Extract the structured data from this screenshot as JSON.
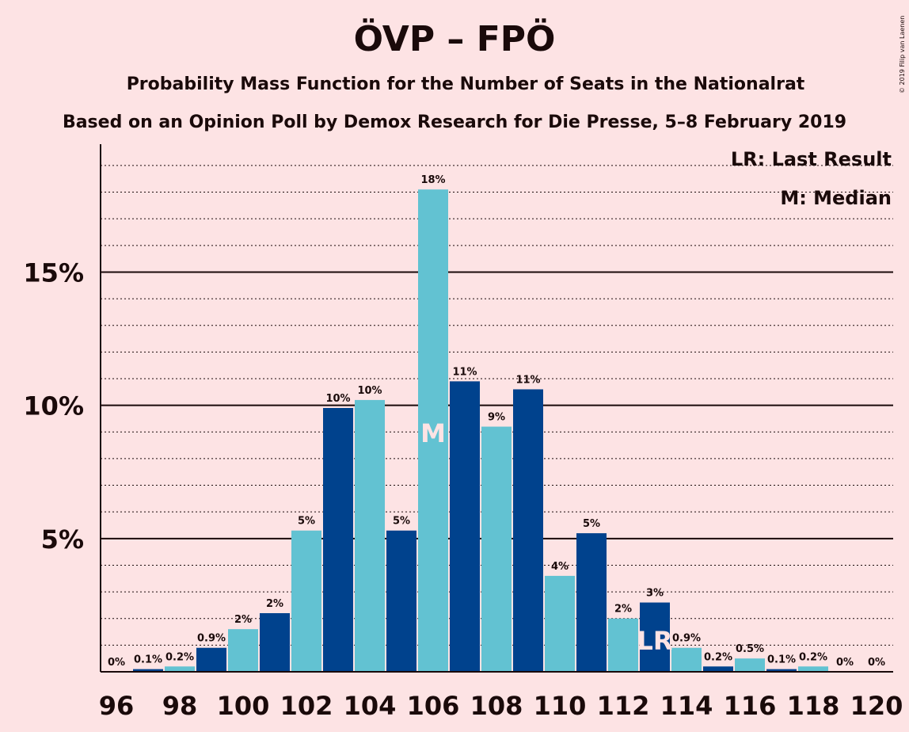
{
  "chart_data": {
    "type": "bar",
    "title": "ÖVP – FPÖ",
    "subtitle": "Probability Mass Function for the Number of Seats in the Nationalrat",
    "subtitle2": "Based on an Opinion Poll by Demox Research for Die Presse, 5–8 February 2019",
    "copyright": "© 2019 Filip van Laenen",
    "legend": {
      "lr": "LR: Last Result",
      "m": "M: Median",
      "placement": "top-right"
    },
    "markers": {
      "median": {
        "seats": 106,
        "label": "M"
      },
      "last_result": {
        "seats": 113,
        "label": "LR"
      }
    },
    "colors": {
      "dark": "#00428d",
      "light": "#62c2d2",
      "background": "#fde3e4",
      "text": "#1a0a0a"
    },
    "ylim": [
      0,
      19.8
    ],
    "yticks": [
      {
        "value": 5,
        "label": "5%"
      },
      {
        "value": 10,
        "label": "10%"
      },
      {
        "value": 15,
        "label": "15%"
      }
    ],
    "xticks": [
      96,
      98,
      100,
      102,
      104,
      106,
      108,
      110,
      112,
      114,
      116,
      118,
      120
    ],
    "bars": [
      {
        "seats": 96,
        "value": 0,
        "label": "0%"
      },
      {
        "seats": 97,
        "value": 0.1,
        "label": "0.1%"
      },
      {
        "seats": 98,
        "value": 0.2,
        "label": "0.2%"
      },
      {
        "seats": 99,
        "value": 0.9,
        "label": "0.9%"
      },
      {
        "seats": 100,
        "value": 1.6,
        "label": "2%"
      },
      {
        "seats": 101,
        "value": 2.2,
        "label": "2%"
      },
      {
        "seats": 102,
        "value": 5.3,
        "label": "5%"
      },
      {
        "seats": 103,
        "value": 9.9,
        "label": "10%"
      },
      {
        "seats": 104,
        "value": 10.2,
        "label": "10%"
      },
      {
        "seats": 105,
        "value": 5.3,
        "label": "5%"
      },
      {
        "seats": 106,
        "value": 18.1,
        "label": "18%"
      },
      {
        "seats": 107,
        "value": 10.9,
        "label": "11%"
      },
      {
        "seats": 108,
        "value": 9.2,
        "label": "9%"
      },
      {
        "seats": 109,
        "value": 10.6,
        "label": "11%"
      },
      {
        "seats": 110,
        "value": 3.6,
        "label": "4%"
      },
      {
        "seats": 111,
        "value": 5.2,
        "label": "5%"
      },
      {
        "seats": 112,
        "value": 2.0,
        "label": "2%"
      },
      {
        "seats": 113,
        "value": 2.6,
        "label": "3%"
      },
      {
        "seats": 114,
        "value": 0.9,
        "label": "0.9%"
      },
      {
        "seats": 115,
        "value": 0.2,
        "label": "0.2%"
      },
      {
        "seats": 116,
        "value": 0.5,
        "label": "0.5%"
      },
      {
        "seats": 117,
        "value": 0.1,
        "label": "0.1%"
      },
      {
        "seats": 118,
        "value": 0.2,
        "label": "0.2%"
      },
      {
        "seats": 119,
        "value": 0,
        "label": "0%"
      },
      {
        "seats": 120,
        "value": 0,
        "label": "0%"
      }
    ]
  }
}
